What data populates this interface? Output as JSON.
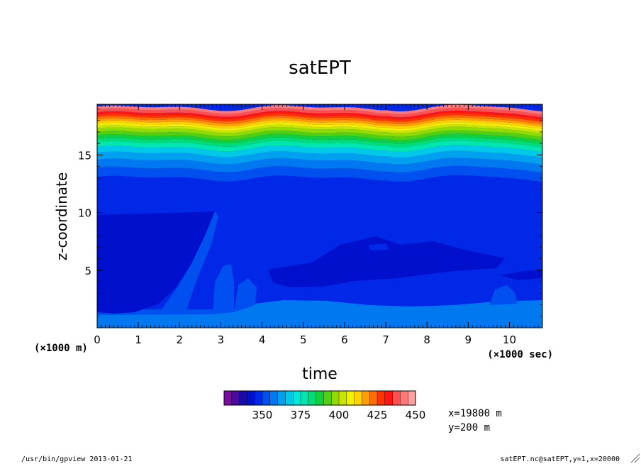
{
  "chart_data": {
    "type": "heatmap",
    "title": "satEPT",
    "xlabel": "time",
    "ylabel": "z-coordinate",
    "x_unit_note": "(×1000 sec)",
    "y_unit_note": "(×1000 m)",
    "xlim": [
      0,
      10.8
    ],
    "ylim": [
      0,
      19.4
    ],
    "x_ticks": [
      "0",
      "1",
      "2",
      "3",
      "4",
      "5",
      "6",
      "7",
      "8",
      "9",
      "10"
    ],
    "y_ticks": [
      "5",
      "10",
      "15"
    ],
    "colorbar": {
      "colors": [
        "#7a0ea4",
        "#4a0a9c",
        "#1a0aa8",
        "#0010cc",
        "#0028e6",
        "#0050f0",
        "#0078f0",
        "#00a0f0",
        "#00c8e8",
        "#00e6dc",
        "#00e6b0",
        "#00dc78",
        "#10d040",
        "#50d010",
        "#90dc00",
        "#c8e600",
        "#f0f000",
        "#ffd200",
        "#ffa000",
        "#ff6e00",
        "#ff3200",
        "#ff1414",
        "#ff5050",
        "#ff7878",
        "#ffa0a0"
      ],
      "tick_labels": [
        "350",
        "375",
        "400",
        "425",
        "450"
      ]
    },
    "level_bands": [
      {
        "z": [
          0,
          0.15
        ],
        "level": 9
      },
      {
        "z": [
          0.15,
          0.35
        ],
        "level": 7
      },
      {
        "z": [
          0.35,
          0.8
        ],
        "level": 6
      },
      {
        "z": [
          0.8,
          1.6
        ],
        "level": 5
      },
      {
        "z": [
          12.4,
          13.0
        ],
        "level": 4
      },
      {
        "z": [
          13.0,
          13.8
        ],
        "level": 5
      },
      {
        "z": [
          13.8,
          14.5
        ],
        "level": 6
      },
      {
        "z": [
          14.5,
          15.1
        ],
        "level": 7
      },
      {
        "z": [
          15.1,
          15.6
        ],
        "level": 8
      },
      {
        "z": [
          15.6,
          16.0
        ],
        "level": 10
      },
      {
        "z": [
          16.0,
          16.3
        ],
        "level": 11
      },
      {
        "z": [
          16.3,
          16.6
        ],
        "level": 12
      },
      {
        "z": [
          16.6,
          16.9
        ],
        "level": 13
      },
      {
        "z": [
          16.9,
          17.2
        ],
        "level": 14
      },
      {
        "z": [
          17.2,
          17.4
        ],
        "level": 15
      },
      {
        "z": [
          17.4,
          17.6
        ],
        "level": 16
      },
      {
        "z": [
          17.6,
          17.8
        ],
        "level": 17
      },
      {
        "z": [
          17.8,
          18.0
        ],
        "level": 18
      },
      {
        "z": [
          18.0,
          18.2
        ],
        "level": 19
      },
      {
        "z": [
          18.2,
          18.4
        ],
        "level": 20
      },
      {
        "z": [
          18.4,
          18.6
        ],
        "level": 21
      },
      {
        "z": [
          18.6,
          18.85
        ],
        "level": 22
      },
      {
        "z": [
          18.85,
          19.1
        ],
        "level": 23
      }
    ]
  },
  "annotations": {
    "position_x": "x=19800  m",
    "position_y": "y=200  m",
    "footer_left": "/usr/bin/gpview  2013-01-21",
    "footer_right": "satEPT.nc@satEPT,y=1,x=20000"
  }
}
